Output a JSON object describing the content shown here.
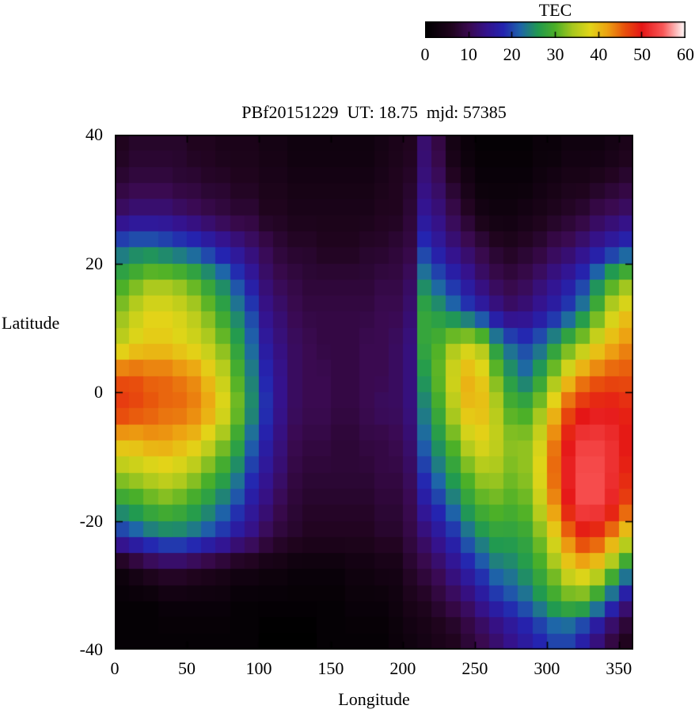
{
  "title": "PBf20151229  UT: 18.75  mjd: 57385",
  "colorbar": {
    "title": "TEC",
    "min": 0,
    "max": 60,
    "tick_labels": [
      0,
      10,
      20,
      30,
      40,
      50,
      60
    ],
    "palette": [
      [
        0,
        "#000000"
      ],
      [
        6,
        "#20041e"
      ],
      [
        10,
        "#3a0a50"
      ],
      [
        14,
        "#35128c"
      ],
      [
        18,
        "#2424b0"
      ],
      [
        22,
        "#1e66a8"
      ],
      [
        26,
        "#219a50"
      ],
      [
        30,
        "#4cb028"
      ],
      [
        34,
        "#a8c81e"
      ],
      [
        38,
        "#e2d618"
      ],
      [
        42,
        "#eda312"
      ],
      [
        46,
        "#e8520c"
      ],
      [
        50,
        "#e51616"
      ],
      [
        55,
        "#fa5a5a"
      ],
      [
        60,
        "#ffffff"
      ]
    ]
  },
  "axes": {
    "xlabel": "Longitude",
    "ylabel": "Latitude",
    "xlim": [
      0,
      360
    ],
    "ylim": [
      -40,
      40
    ],
    "x_ticks": [
      0,
      50,
      100,
      150,
      200,
      250,
      300,
      350
    ],
    "y_ticks": [
      40,
      20,
      0,
      -20,
      -40
    ]
  },
  "chart_data": {
    "type": "heatmap",
    "title": "PBf20151229  UT: 18.75  mjd: 57385",
    "units": "TEC",
    "xlabel": "Longitude",
    "ylabel": "Latitude",
    "value_range": [
      0,
      60
    ],
    "x_centers": [
      5,
      15,
      25,
      35,
      45,
      55,
      65,
      75,
      85,
      95,
      105,
      115,
      125,
      135,
      145,
      155,
      165,
      175,
      185,
      195,
      205,
      215,
      225,
      235,
      245,
      255,
      265,
      275,
      285,
      295,
      305,
      315,
      325,
      335,
      345,
      355
    ],
    "y_centers": [
      37.5,
      32.5,
      27.5,
      22.5,
      17.5,
      12.5,
      7.5,
      2.5,
      -2.5,
      -7.5,
      -12.5,
      -17.5,
      -22.5,
      -27.5,
      -32.5,
      -37.5
    ],
    "values": [
      [
        6,
        7,
        7,
        7,
        7,
        6,
        6,
        5,
        5,
        5,
        4,
        4,
        3,
        3,
        3,
        3,
        3,
        3,
        4,
        5,
        6,
        12,
        9,
        4,
        2,
        1,
        1,
        1,
        1,
        2,
        2,
        3,
        3,
        3,
        4,
        5
      ],
      [
        8,
        9,
        9,
        9,
        8,
        8,
        7,
        7,
        6,
        6,
        5,
        5,
        4,
        4,
        4,
        4,
        4,
        4,
        5,
        6,
        7,
        13,
        11,
        7,
        4,
        2,
        2,
        2,
        2,
        3,
        4,
        5,
        5,
        6,
        7,
        8
      ],
      [
        12,
        13,
        13,
        13,
        12,
        11,
        10,
        9,
        8,
        8,
        6,
        6,
        5,
        5,
        5,
        5,
        5,
        5,
        6,
        6,
        8,
        15,
        13,
        10,
        7,
        4,
        3,
        3,
        4,
        5,
        6,
        7,
        8,
        10,
        11,
        12
      ],
      [
        22,
        23,
        23,
        22,
        21,
        20,
        18,
        16,
        14,
        12,
        10,
        8,
        7,
        7,
        6,
        6,
        6,
        7,
        7,
        8,
        9,
        19,
        16,
        13,
        11,
        9,
        7,
        6,
        7,
        8,
        10,
        11,
        13,
        15,
        17,
        19
      ],
      [
        29,
        31,
        33,
        33,
        32,
        30,
        27,
        24,
        20,
        16,
        12,
        10,
        9,
        8,
        8,
        8,
        8,
        8,
        9,
        9,
        11,
        24,
        21,
        18,
        15,
        12,
        10,
        9,
        10,
        12,
        14,
        16,
        19,
        24,
        29,
        32
      ],
      [
        33,
        36,
        38,
        38,
        37,
        35,
        32,
        28,
        24,
        20,
        14,
        12,
        10,
        9,
        9,
        9,
        9,
        9,
        10,
        10,
        12,
        28,
        26,
        23,
        20,
        17,
        14,
        12,
        13,
        15,
        17,
        20,
        24,
        30,
        36,
        39
      ],
      [
        36,
        38,
        39,
        39,
        38,
        37,
        35,
        32,
        27,
        22,
        16,
        13,
        11,
        10,
        9,
        9,
        9,
        10,
        10,
        11,
        13,
        28,
        30,
        34,
        36,
        34,
        26,
        22,
        20,
        22,
        26,
        30,
        34,
        38,
        41,
        43
      ],
      [
        46,
        46,
        45,
        45,
        44,
        43,
        40,
        36,
        30,
        24,
        18,
        14,
        11,
        10,
        10,
        9,
        9,
        10,
        10,
        11,
        13,
        26,
        31,
        37,
        41,
        39,
        32,
        26,
        23,
        27,
        33,
        39,
        43,
        45,
        46,
        46
      ],
      [
        48,
        47,
        46,
        45,
        45,
        44,
        42,
        38,
        32,
        25,
        19,
        14,
        11,
        10,
        10,
        9,
        9,
        10,
        11,
        11,
        13,
        24,
        29,
        35,
        40,
        40,
        35,
        30,
        29,
        33,
        40,
        46,
        49,
        50,
        50,
        49
      ],
      [
        41,
        41,
        42,
        42,
        41,
        40,
        37,
        33,
        28,
        22,
        17,
        13,
        10,
        9,
        9,
        8,
        8,
        9,
        9,
        10,
        12,
        22,
        26,
        31,
        36,
        38,
        36,
        33,
        33,
        37,
        44,
        50,
        53,
        53,
        52,
        50
      ],
      [
        34,
        35,
        36,
        37,
        36,
        34,
        31,
        28,
        24,
        19,
        15,
        12,
        9,
        8,
        8,
        8,
        8,
        8,
        9,
        9,
        11,
        19,
        23,
        27,
        31,
        34,
        34,
        32,
        33,
        38,
        45,
        51,
        54,
        54,
        52,
        49
      ],
      [
        27,
        28,
        30,
        31,
        30,
        28,
        26,
        23,
        20,
        16,
        13,
        10,
        8,
        7,
        7,
        7,
        7,
        7,
        8,
        8,
        10,
        16,
        19,
        23,
        27,
        30,
        31,
        30,
        31,
        36,
        43,
        50,
        54,
        54,
        51,
        47
      ],
      [
        18,
        20,
        22,
        23,
        23,
        22,
        20,
        18,
        15,
        13,
        10,
        8,
        7,
        6,
        6,
        6,
        6,
        6,
        7,
        7,
        9,
        12,
        15,
        18,
        22,
        25,
        27,
        27,
        28,
        32,
        38,
        44,
        48,
        47,
        43,
        38
      ],
      [
        3,
        5,
        7,
        8,
        8,
        7,
        6,
        5,
        4,
        4,
        3,
        3,
        2,
        2,
        2,
        2,
        3,
        3,
        4,
        4,
        7,
        9,
        11,
        14,
        17,
        20,
        23,
        24,
        26,
        29,
        33,
        38,
        40,
        38,
        32,
        26
      ],
      [
        1,
        1,
        1,
        2,
        2,
        2,
        2,
        2,
        1,
        1,
        1,
        1,
        1,
        1,
        1,
        1,
        2,
        2,
        2,
        3,
        5,
        6,
        8,
        10,
        12,
        15,
        18,
        20,
        22,
        25,
        28,
        30,
        30,
        26,
        20,
        14
      ],
      [
        1,
        1,
        1,
        1,
        1,
        1,
        1,
        1,
        1,
        1,
        0,
        0,
        0,
        0,
        1,
        1,
        1,
        1,
        1,
        2,
        3,
        4,
        5,
        6,
        8,
        10,
        12,
        14,
        16,
        18,
        20,
        20,
        17,
        13,
        9,
        6
      ]
    ]
  }
}
